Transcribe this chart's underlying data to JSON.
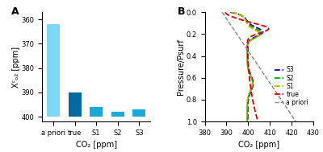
{
  "panel_A": {
    "categories": [
      "a priori",
      "true",
      "S1",
      "S2",
      "S3"
    ],
    "values": [
      362,
      390,
      396,
      398,
      397
    ],
    "bar_top": 400,
    "bar_colors": [
      "#7dd8f5",
      "#006b9e",
      "#1aa8d8",
      "#1aa8d8",
      "#1aa8d8"
    ],
    "xlabel": "CO₂ [ppm]",
    "ylabel": "Xᶜₒ₂ [ppm]",
    "ylim_bottom": 357,
    "ylim_top": 402,
    "yticks": [
      360,
      370,
      380,
      390,
      400
    ],
    "title": "A"
  },
  "panel_B": {
    "xlabel": "CO₂ [ppm]",
    "ylabel": "Pressure/Psurf",
    "xlim": [
      380,
      430
    ],
    "ylim": [
      0.0,
      1.0
    ],
    "xticks": [
      380,
      390,
      400,
      410,
      420,
      430
    ],
    "yticks": [
      0.0,
      0.2,
      0.4,
      0.6,
      0.8,
      1.0
    ],
    "title": "B",
    "legend_entries": [
      "S3",
      "S2",
      "S1",
      "true",
      "a priori"
    ],
    "legend_colors": [
      "#0000dd",
      "#00aa00",
      "#ccaa00",
      "#dd0000",
      "#888888"
    ]
  },
  "background_color": "#ffffff",
  "font_size": 7
}
